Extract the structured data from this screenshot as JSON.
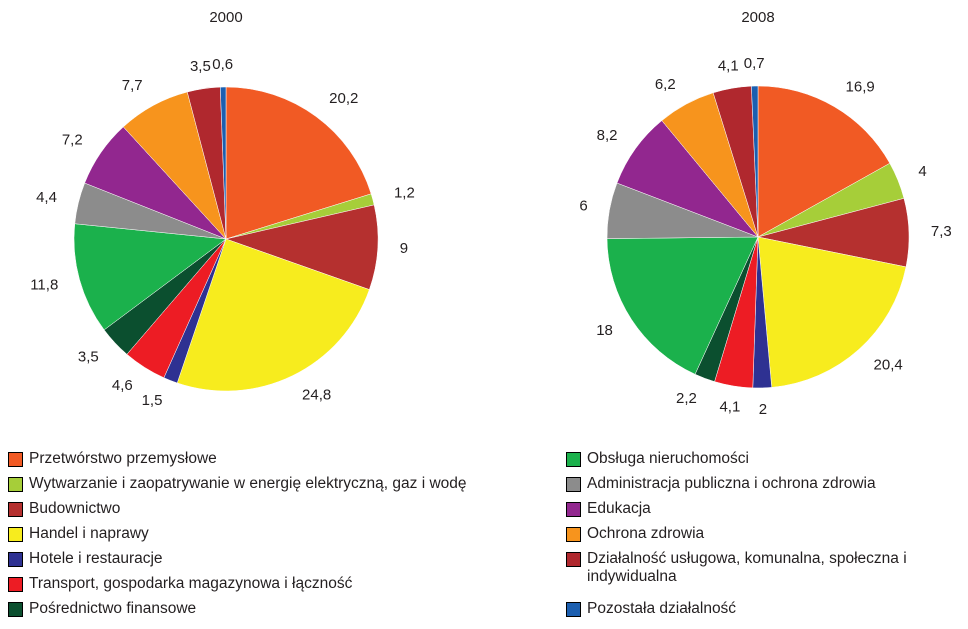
{
  "chart_data": [
    {
      "type": "pie",
      "title": "2000",
      "categories": [
        "Przetwórstwo przemysłowe",
        "Wytwarzanie i zaopatrywanie w energię elektryczną, gaz i wodę",
        "Budownictwo",
        "Handel i naprawy",
        "Hotele i restauracje",
        "Transport, gospodarka magazynowa i łączność",
        "Pośrednictwo finansowe",
        "Obsługa nieruchomości",
        "Administracja publiczna i ochrona zdrowia",
        "Edukacja",
        "Ochrona zdrowia",
        "Działalność usługowa, komunalna, społeczna i indywidualna",
        "Pozostała działalność"
      ],
      "colors": [
        "#f15a24",
        "#a6ce39",
        "#b5302f",
        "#f7ec1e",
        "#2e3192",
        "#ed1c24",
        "#0b4f2f",
        "#1bb14c",
        "#8c8c8c",
        "#92278f",
        "#f7941d",
        "#b0282e",
        "#1c5fb0"
      ],
      "values": [
        20.2,
        1.2,
        9,
        24.8,
        1.5,
        4.6,
        3.5,
        11.8,
        4.4,
        7.2,
        7.7,
        3.5,
        0.6
      ],
      "value_labels": [
        "20,2",
        "1,2",
        "9",
        "24,8",
        "1,5",
        "4,6",
        "3,5",
        "11,8",
        "4,4",
        "7,2",
        "7,7",
        "3,5",
        "0,6"
      ]
    },
    {
      "type": "pie",
      "title": "2008",
      "categories": [
        "Przetwórstwo przemysłowe",
        "Wytwarzanie i zaopatrywanie w energię elektryczną, gaz i wodę",
        "Budownictwo",
        "Handel i naprawy",
        "Hotele i restauracje",
        "Transport, gospodarka magazynowa i łączność",
        "Pośrednictwo finansowe",
        "Obsługa nieruchomości",
        "Administracja publiczna i ochrona zdrowia",
        "Edukacja",
        "Ochrona zdrowia",
        "Działalność usługowa, komunalna, społeczna i indywidualna",
        "Pozostała działalność"
      ],
      "colors": [
        "#f15a24",
        "#a6ce39",
        "#b5302f",
        "#f7ec1e",
        "#2e3192",
        "#ed1c24",
        "#0b4f2f",
        "#1bb14c",
        "#8c8c8c",
        "#92278f",
        "#f7941d",
        "#b0282e",
        "#1c5fb0"
      ],
      "values": [
        16.9,
        4,
        7.3,
        20.4,
        2,
        4.1,
        2.2,
        18,
        6,
        8.2,
        6.2,
        4.1,
        0.7
      ],
      "value_labels": [
        "16,9",
        "4",
        "7,3",
        "20,4",
        "2",
        "4,1",
        "2,2",
        "18",
        "6",
        "8,2",
        "6,2",
        "4,1",
        "0,7"
      ]
    }
  ]
}
